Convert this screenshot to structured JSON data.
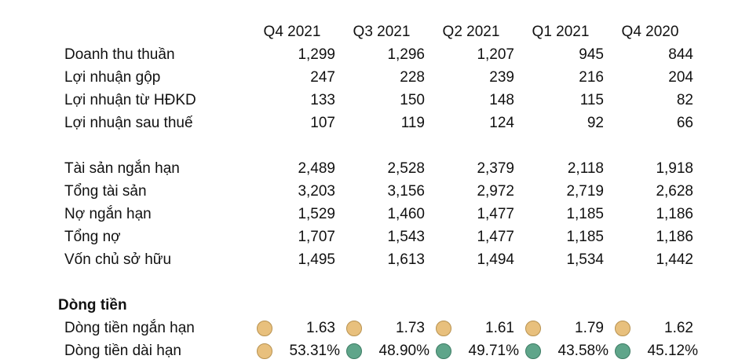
{
  "periods": [
    "Q4 2021",
    "Q3 2021",
    "Q2 2021",
    "Q1 2021",
    "Q4 2020"
  ],
  "income": [
    {
      "label": "Doanh thu thuần",
      "values": [
        "1,299",
        "1,296",
        "1,207",
        "945",
        "844"
      ]
    },
    {
      "label": "Lợi nhuận gộp",
      "values": [
        "247",
        "228",
        "239",
        "216",
        "204"
      ]
    },
    {
      "label": "Lợi nhuận từ HĐKD",
      "values": [
        "133",
        "150",
        "148",
        "115",
        "82"
      ]
    },
    {
      "label": "Lợi nhuận sau thuế",
      "values": [
        "107",
        "119",
        "124",
        "92",
        "66"
      ]
    }
  ],
  "balance": [
    {
      "label": "Tài sản ngắn hạn",
      "values": [
        "2,489",
        "2,528",
        "2,379",
        "2,118",
        "1,918"
      ]
    },
    {
      "label": "Tổng tài sản",
      "values": [
        "3,203",
        "3,156",
        "2,972",
        "2,719",
        "2,628"
      ]
    },
    {
      "label": "Nợ ngắn hạn",
      "values": [
        "1,529",
        "1,460",
        "1,477",
        "1,185",
        "1,186"
      ]
    },
    {
      "label": "Tổng nợ",
      "values": [
        "1,707",
        "1,543",
        "1,477",
        "1,185",
        "1,186"
      ]
    },
    {
      "label": "Vốn chủ sở hữu",
      "values": [
        "1,495",
        "1,613",
        "1,494",
        "1,534",
        "1,442"
      ]
    }
  ],
  "cashflow": {
    "title": "Dòng tiền",
    "rows": [
      {
        "label": "Dòng tiền ngắn hạn",
        "values": [
          "1.63",
          "1.73",
          "1.61",
          "1.79",
          "1.62"
        ],
        "indicators": [
          "yellow-circle-icon",
          "yellow-circle-icon",
          "yellow-circle-icon",
          "yellow-circle-icon",
          "yellow-circle-icon"
        ]
      },
      {
        "label": "Dòng tiền dài hạn",
        "values": [
          "53.31%",
          "48.90%",
          "49.71%",
          "43.58%",
          "45.12%"
        ],
        "indicators": [
          "yellow-circle-icon",
          "green-circle-icon",
          "green-circle-icon",
          "green-circle-icon",
          "green-circle-icon"
        ]
      }
    ]
  },
  "colors": {
    "yellow": "#e8c07d",
    "green": "#5fa58a"
  }
}
